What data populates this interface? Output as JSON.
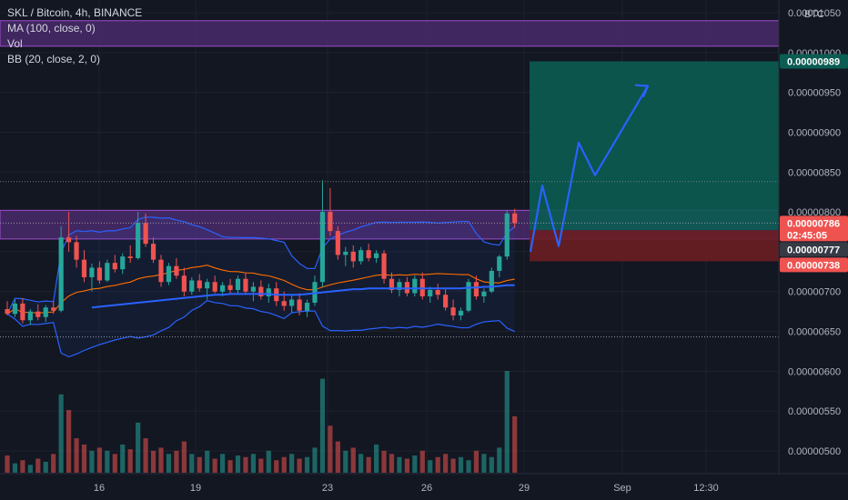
{
  "legend": {
    "symbol": "SKL / Bitcoin, 4h, BINANCE",
    "ma": "MA (100, close, 0)",
    "vol": "Vol",
    "bb": "BB (20, close, 2, 0)"
  },
  "currency": "BTC",
  "colors": {
    "background": "#131722",
    "up": "#26a69a",
    "down": "#ef5350",
    "ma": "#2962ff",
    "bb_band": "#2962ff",
    "bb_basis": "#ff6d00",
    "zone": "#4a2a6b",
    "target": "#0b5c52",
    "stop": "#6b1e22",
    "arrow": "#2962ff"
  },
  "chart_data": {
    "type": "candlestick",
    "y_axis_labels": [
      "0.00000500",
      "0.00000550",
      "0.00000600",
      "0.00000650",
      "0.00000700",
      "0.00000750",
      "0.00000800",
      "0.00000850",
      "0.00000900",
      "0.00000950",
      "0.00001000",
      "0.00001050"
    ],
    "ylim": [
      4.8e-06,
      1.06e-05
    ],
    "x_axis_labels": [
      "16",
      "19",
      "23",
      "26",
      "29",
      "Sep",
      "12:30"
    ],
    "price_badges": [
      {
        "text": "0.00000989",
        "value": 9.89e-06,
        "bg": "#0b5c52",
        "color": "#ffffff"
      },
      {
        "text": "0.00000786",
        "value": 7.86e-06,
        "bg": "#ef5350",
        "color": "#ffffff",
        "sub": "02:45:05"
      },
      {
        "text": "0.00000777",
        "value": 7.77e-06,
        "bg": "#363a45",
        "color": "#ffffff"
      },
      {
        "text": "0.00000738",
        "value": 7.38e-06,
        "bg": "#ef5350",
        "color": "#ffffff"
      }
    ],
    "resistance_zones": [
      [
        1.008e-05,
        1.04e-05
      ],
      [
        7.66e-06,
        8.02e-06
      ]
    ],
    "position": {
      "entry": 7.77e-06,
      "target": 9.89e-06,
      "stop": 7.38e-06
    },
    "projected_path": [
      7.5e-06,
      8.33e-06,
      7.57e-06,
      8.87e-06,
      8.46e-06,
      9.58e-06
    ],
    "candles": [
      [
        6.78e-06,
        6.88e-06,
        6.7e-06,
        6.72e-06
      ],
      [
        6.72e-06,
        6.9e-06,
        6.68e-06,
        6.85e-06
      ],
      [
        6.85e-06,
        6.92e-06,
        6.6e-06,
        6.64e-06
      ],
      [
        6.64e-06,
        6.78e-06,
        6.58e-06,
        6.75e-06
      ],
      [
        6.75e-06,
        6.84e-06,
        6.64e-06,
        6.68e-06
      ],
      [
        6.68e-06,
        6.83e-06,
        6.62e-06,
        6.8e-06
      ],
      [
        6.8e-06,
        6.88e-06,
        6.72e-06,
        6.76e-06
      ],
      [
        6.76e-06,
        7.82e-06,
        6.74e-06,
        7.68e-06
      ],
      [
        7.68e-06,
        8e-06,
        7.5e-06,
        7.62e-06
      ],
      [
        7.62e-06,
        7.7e-06,
        7.3e-06,
        7.4e-06
      ],
      [
        7.4e-06,
        7.52e-06,
        7.12e-06,
        7.18e-06
      ],
      [
        7.18e-06,
        7.35e-06,
        7e-06,
        7.3e-06
      ],
      [
        7.3e-06,
        7.38e-06,
        7.1e-06,
        7.14e-06
      ],
      [
        7.14e-06,
        7.4e-06,
        7.12e-06,
        7.36e-06
      ],
      [
        7.36e-06,
        7.46e-06,
        7.24e-06,
        7.28e-06
      ],
      [
        7.28e-06,
        7.48e-06,
        7.22e-06,
        7.44e-06
      ],
      [
        7.44e-06,
        7.58e-06,
        7.36e-06,
        7.42e-06
      ],
      [
        7.42e-06,
        8e-06,
        7.4e-06,
        7.86e-06
      ],
      [
        7.86e-06,
        7.98e-06,
        7.56e-06,
        7.6e-06
      ],
      [
        7.6e-06,
        7.68e-06,
        7.36e-06,
        7.4e-06
      ],
      [
        7.4e-06,
        7.46e-06,
        7.06e-06,
        7.12e-06
      ],
      [
        7.12e-06,
        7.36e-06,
        7.08e-06,
        7.32e-06
      ],
      [
        7.32e-06,
        7.42e-06,
        7.16e-06,
        7.2e-06
      ],
      [
        7.2e-06,
        7.3e-06,
        6.94e-06,
        7e-06
      ],
      [
        7e-06,
        7.18e-06,
        6.96e-06,
        7.14e-06
      ],
      [
        7.14e-06,
        7.22e-06,
        7e-06,
        7.04e-06
      ],
      [
        7.04e-06,
        7.16e-06,
        6.9e-06,
        7.12e-06
      ],
      [
        7.12e-06,
        7.2e-06,
        6.98e-06,
        7e-06
      ],
      [
        7e-06,
        7.12e-06,
        6.94e-06,
        7.08e-06
      ],
      [
        7.08e-06,
        7.16e-06,
        6.96e-06,
        7.02e-06
      ],
      [
        7.02e-06,
        7.2e-06,
        6.98e-06,
        7.16e-06
      ],
      [
        7.16e-06,
        7.24e-06,
        6.96e-06,
        7e-06
      ],
      [
        7e-06,
        7.12e-06,
        6.88e-06,
        7.06e-06
      ],
      [
        7.06e-06,
        7.14e-06,
        6.9e-06,
        6.94e-06
      ],
      [
        6.94e-06,
        7.1e-06,
        6.86e-06,
        7.04e-06
      ],
      [
        7.04e-06,
        7.12e-06,
        6.82e-06,
        6.88e-06
      ],
      [
        6.88e-06,
        7e-06,
        6.76e-06,
        6.82e-06
      ],
      [
        6.82e-06,
        6.96e-06,
        6.74e-06,
        6.9e-06
      ],
      [
        6.9e-06,
        6.98e-06,
        6.7e-06,
        6.76e-06
      ],
      [
        6.76e-06,
        6.9e-06,
        6.68e-06,
        6.86e-06
      ],
      [
        6.86e-06,
        7.2e-06,
        6.82e-06,
        7.12e-06
      ],
      [
        7.12e-06,
        8.4e-06,
        7.06e-06,
        8e-06
      ],
      [
        8e-06,
        8.3e-06,
        7.7e-06,
        7.76e-06
      ],
      [
        7.76e-06,
        7.82e-06,
        7.4e-06,
        7.46e-06
      ],
      [
        7.46e-06,
        7.56e-06,
        7.32e-06,
        7.5e-06
      ],
      [
        7.5e-06,
        7.58e-06,
        7.3e-06,
        7.38e-06
      ],
      [
        7.38e-06,
        7.56e-06,
        7.34e-06,
        7.52e-06
      ],
      [
        7.52e-06,
        7.6e-06,
        7.38e-06,
        7.42e-06
      ],
      [
        7.42e-06,
        7.52e-06,
        7.36e-06,
        7.48e-06
      ],
      [
        7.48e-06,
        7.52e-06,
        7.1e-06,
        7.16e-06
      ],
      [
        7.16e-06,
        7.24e-06,
        6.98e-06,
        7.02e-06
      ],
      [
        7.02e-06,
        7.16e-06,
        6.94e-06,
        7.12e-06
      ],
      [
        7.12e-06,
        7.18e-06,
        6.94e-06,
        6.98e-06
      ],
      [
        6.98e-06,
        7.2e-06,
        6.94e-06,
        7.16e-06
      ],
      [
        7.16e-06,
        7.24e-06,
        6.9e-06,
        6.94e-06
      ],
      [
        6.94e-06,
        7.06e-06,
        6.86e-06,
        7.02e-06
      ],
      [
        7.02e-06,
        7.1e-06,
        6.9e-06,
        6.96e-06
      ],
      [
        6.96e-06,
        7.04e-06,
        6.76e-06,
        6.8e-06
      ],
      [
        6.8e-06,
        6.9e-06,
        6.64e-06,
        6.7e-06
      ],
      [
        6.7e-06,
        6.8e-06,
        6.64e-06,
        6.76e-06
      ],
      [
        6.76e-06,
        7.16e-06,
        6.74e-06,
        7.12e-06
      ],
      [
        7.12e-06,
        7.2e-06,
        6.9e-06,
        6.94e-06
      ],
      [
        6.94e-06,
        7.04e-06,
        6.86e-06,
        7e-06
      ],
      [
        7e-06,
        7.3e-06,
        6.98e-06,
        7.26e-06
      ],
      [
        7.26e-06,
        7.46e-06,
        7.18e-06,
        7.44e-06
      ],
      [
        7.44e-06,
        8.02e-06,
        7.4e-06,
        7.98e-06
      ],
      [
        7.98e-06,
        8.04e-06,
        7.8e-06,
        7.86e-06
      ]
    ],
    "volumes": [
      11,
      6,
      8,
      5,
      9,
      7,
      12,
      50,
      40,
      22,
      18,
      14,
      16,
      14,
      12,
      18,
      15,
      32,
      22,
      14,
      16,
      12,
      14,
      20,
      12,
      10,
      14,
      9,
      12,
      8,
      11,
      10,
      12,
      9,
      14,
      8,
      10,
      12,
      9,
      10,
      16,
      60,
      30,
      20,
      14,
      16,
      12,
      10,
      18,
      14,
      12,
      10,
      9,
      11,
      14,
      8,
      10,
      12,
      9,
      10,
      8,
      14,
      12,
      10,
      16,
      65,
      36
    ],
    "ma_values": [
      null,
      null,
      null,
      null,
      null,
      null,
      null,
      null,
      null,
      null,
      null,
      6.8e-06,
      6.81e-06,
      6.82e-06,
      6.83e-06,
      6.84e-06,
      6.85e-06,
      6.86e-06,
      6.87e-06,
      6.88e-06,
      6.89e-06,
      6.9e-06,
      6.91e-06,
      6.92e-06,
      6.93e-06,
      6.94e-06,
      6.95e-06,
      6.96e-06,
      6.96e-06,
      6.97e-06,
      6.97e-06,
      6.97e-06,
      6.97e-06,
      6.97e-06,
      6.97e-06,
      6.96e-06,
      6.96e-06,
      6.96e-06,
      6.96e-06,
      6.97e-06,
      6.98e-06,
      6.99e-06,
      7e-06,
      7.01e-06,
      7.02e-06,
      7.03e-06,
      7.03e-06,
      7.04e-06,
      7.04e-06,
      7.04e-06,
      7.04e-06,
      7.04e-06,
      7.04e-06,
      7.04e-06,
      7.04e-06,
      7.04e-06,
      7.04e-06,
      7.04e-06,
      7.04e-06,
      7.04e-06,
      7.05e-06,
      7.05e-06,
      7.06e-06,
      7.06e-06,
      7.07e-06,
      7.08e-06,
      7.08e-06
    ]
  }
}
